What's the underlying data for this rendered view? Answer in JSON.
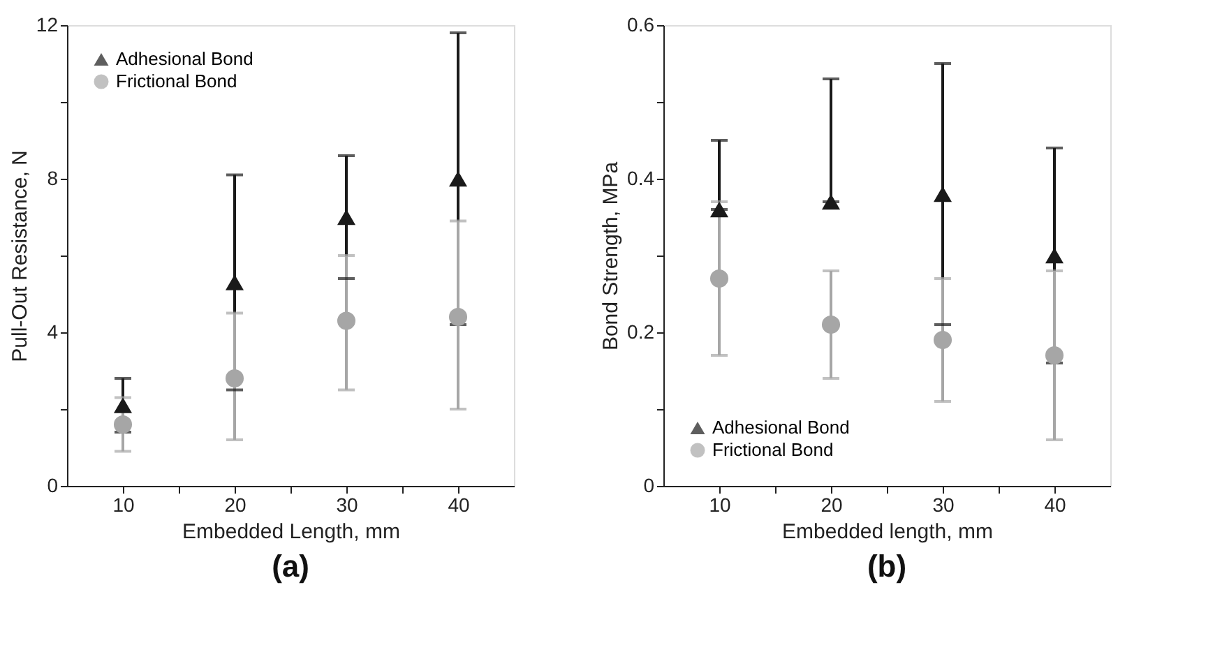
{
  "chart_data": [
    {
      "type": "scatter",
      "title": "(a)",
      "xlabel": "Embedded Length, mm",
      "ylabel": "Pull-Out Resistance, N",
      "x": [
        10,
        20,
        30,
        40
      ],
      "xlim": [
        5,
        45
      ],
      "xticks": [
        10,
        {
          "value": 15,
          "label": null
        },
        20,
        {
          "value": 25,
          "label": null
        },
        30,
        {
          "value": 35,
          "label": null
        },
        40
      ],
      "ylim": [
        0,
        12
      ],
      "yticks": [
        0,
        {
          "value": 2,
          "label": null
        },
        4,
        {
          "value": 6,
          "label": null
        },
        8,
        {
          "value": 10,
          "label": null
        },
        12
      ],
      "legend": "top left",
      "grid": false,
      "series": [
        {
          "name": "Adhesional Bond",
          "color": "#1a1a1a",
          "marker": "triangle",
          "values": [
            2.1,
            5.3,
            7.0,
            8.0
          ],
          "errors": [
            [
              1.4,
              2.8
            ],
            [
              2.5,
              8.1
            ],
            [
              5.4,
              8.6
            ],
            [
              4.2,
              11.8
            ]
          ]
        },
        {
          "name": "Frictional Bond",
          "color": "#a6a6a6",
          "marker": "circle",
          "values": [
            1.6,
            2.8,
            4.3,
            4.4
          ],
          "errors": [
            [
              0.9,
              2.3
            ],
            [
              1.2,
              4.5
            ],
            [
              2.5,
              6.0
            ],
            [
              2.0,
              6.9
            ]
          ]
        }
      ]
    },
    {
      "type": "scatter",
      "title": "(b)",
      "xlabel": "Embedded length, mm",
      "ylabel": "Bond Strength, MPa",
      "x": [
        10,
        20,
        30,
        40
      ],
      "xlim": [
        5,
        45
      ],
      "xticks": [
        10,
        {
          "value": 15,
          "label": null
        },
        20,
        {
          "value": 25,
          "label": null
        },
        30,
        {
          "value": 35,
          "label": null
        },
        40
      ],
      "ylim": [
        0,
        0.6
      ],
      "yticks": [
        0,
        {
          "value": 0.1,
          "label": null
        },
        0.2,
        {
          "value": 0.3,
          "label": null
        },
        0.4,
        {
          "value": 0.5,
          "label": null
        },
        0.6
      ],
      "legend": "bottom left",
      "grid": false,
      "series": [
        {
          "name": "Adhesional Bond",
          "color": "#1a1a1a",
          "marker": "triangle",
          "values": [
            0.36,
            0.37,
            0.38,
            0.3
          ],
          "errors": [
            [
              0.36,
              0.45
            ],
            [
              0.37,
              0.53
            ],
            [
              0.21,
              0.55
            ],
            [
              0.16,
              0.44
            ]
          ]
        },
        {
          "name": "Frictional Bond",
          "color": "#a6a6a6",
          "marker": "circle",
          "values": [
            0.27,
            0.21,
            0.19,
            0.17
          ],
          "errors": [
            [
              0.17,
              0.37
            ],
            [
              0.14,
              0.28
            ],
            [
              0.11,
              0.27
            ],
            [
              0.06,
              0.28
            ]
          ]
        }
      ]
    }
  ]
}
